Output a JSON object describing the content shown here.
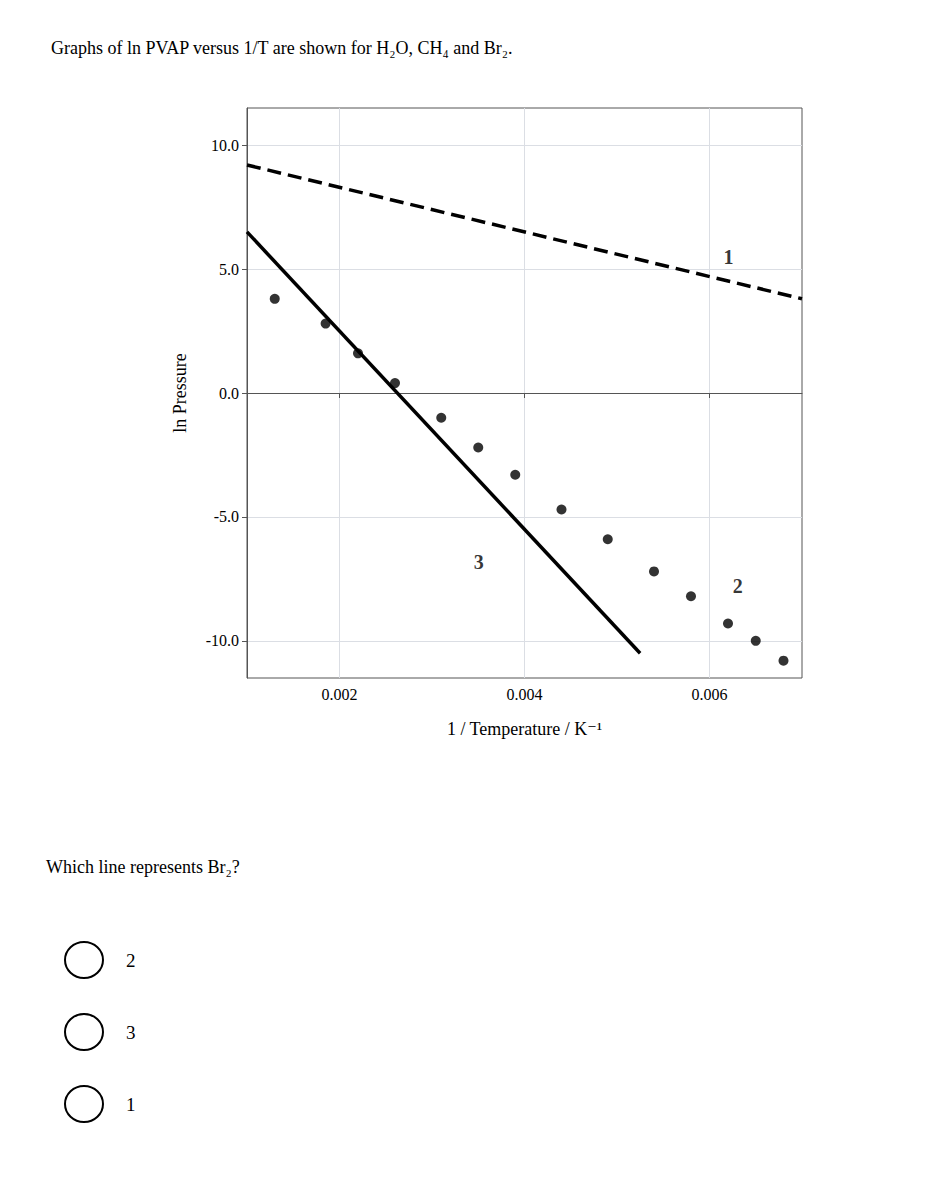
{
  "chart_data": {
    "type": "line",
    "title": "Graphs of ln PVAP versus 1/T are shown for H₂O, CH₄ and Br₂.",
    "x_label": "1 / Temperature / K⁻¹",
    "y_label": "ln Pressure",
    "xlim": [
      0.001,
      0.007
    ],
    "xticks": [
      0.002,
      0.004,
      0.006
    ],
    "ylim": [
      -11.5,
      11.5
    ],
    "yticks": [
      {
        "value": -10.0,
        "label": "-10.0"
      },
      {
        "value": -5.0,
        "label": "-5.0"
      },
      {
        "value": 0.0,
        "label": "0.0"
      },
      {
        "value": 5.0,
        "label": "5.0"
      },
      {
        "value": 10.0,
        "label": "10.0"
      }
    ],
    "grid": true,
    "series": [
      {
        "type": "line",
        "line_style": "dashed",
        "color": "black",
        "x": [
          0.001,
          0.007
        ],
        "values": [
          9.2,
          3.8
        ]
      },
      {
        "type": "scatter",
        "marker": "circle",
        "color": "black",
        "x": [
          0.0013,
          0.00185,
          0.0022,
          0.0026,
          0.0031,
          0.0035,
          0.0039,
          0.0044,
          0.0049,
          0.0054,
          0.0058,
          0.0062,
          0.0065,
          0.0068
        ],
        "values": [
          3.8,
          2.8,
          1.6,
          0.4,
          -1.0,
          -2.2,
          -3.3,
          -4.7,
          -5.9,
          -7.2,
          -8.2,
          -9.3,
          -10.0,
          -10.8
        ]
      },
      {
        "type": "line",
        "line_style": "solid",
        "color": "black",
        "x": [
          0.001,
          0.00525
        ],
        "values": [
          6.5,
          -10.5
        ]
      }
    ],
    "annotations": [
      {
        "text": "1",
        "x": 0.00615,
        "y": 5.5
      },
      {
        "text": "2",
        "x": 0.00625,
        "y": -7.8
      },
      {
        "text": "3",
        "x": 0.00345,
        "y": -6.8
      }
    ],
    "question": "Which line represents Br₂?",
    "options": [
      "2",
      "3",
      "1"
    ]
  }
}
